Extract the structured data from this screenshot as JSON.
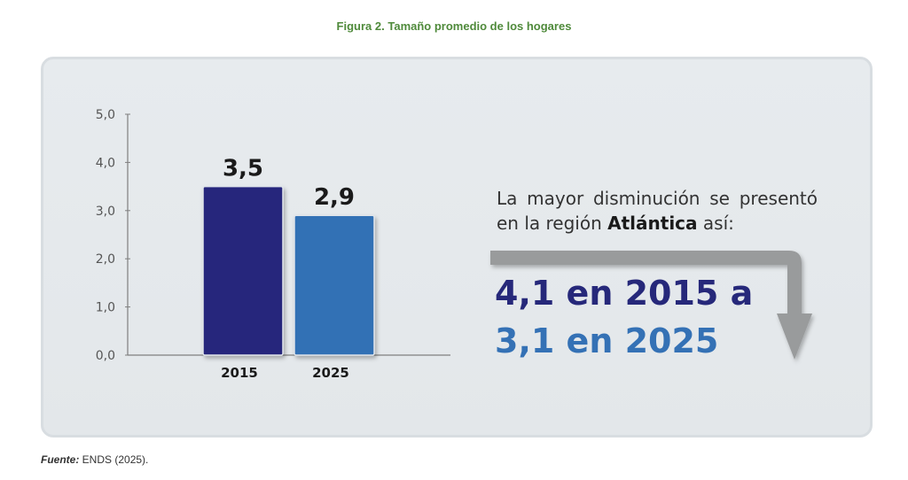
{
  "figure": {
    "label": "Figura 2.",
    "title": "Tamaño promedio de los hogares"
  },
  "chart_data": {
    "type": "bar",
    "categories": [
      "2015",
      "2025"
    ],
    "values": [
      3.5,
      2.9
    ],
    "value_labels": [
      "3,5",
      "2,9"
    ],
    "ylim": [
      0,
      5
    ],
    "yticks": [
      "0,0",
      "1,0",
      "2,0",
      "3,0",
      "4,0",
      "5,0"
    ],
    "colors": [
      "#28287c",
      "#3271b5"
    ],
    "xlabel": "",
    "ylabel": "",
    "grid": false
  },
  "callout": {
    "text_before": "La mayor disminución se presentó en la región ",
    "region": "Atlántica",
    "text_after": " así:",
    "line1": "4,1 en 2015 a",
    "line2": "3,1 en 2025",
    "arrow_color": "#999b9c"
  },
  "source": {
    "label": "Fuente:",
    "text": " ENDS (2025)."
  }
}
